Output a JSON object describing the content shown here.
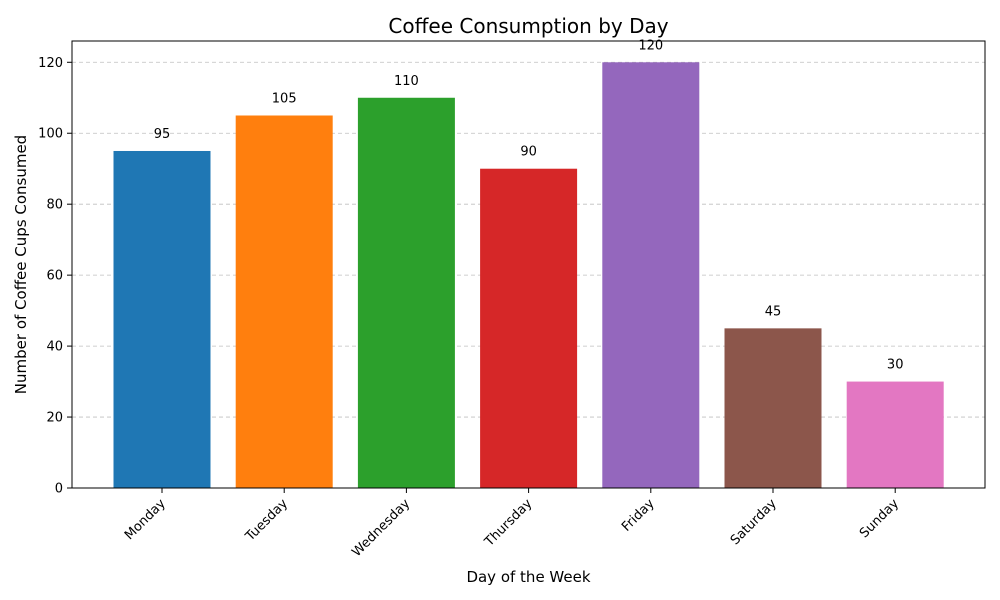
{
  "chart_data": {
    "type": "bar",
    "title": "Coffee Consumption by Day",
    "xlabel": "Day of the Week",
    "ylabel": "Number of Coffee Cups Consumed",
    "categories": [
      "Monday",
      "Tuesday",
      "Wednesday",
      "Thursday",
      "Friday",
      "Saturday",
      "Sunday"
    ],
    "values": [
      95,
      105,
      110,
      90,
      120,
      45,
      30
    ],
    "colors": [
      "#1f77b4",
      "#ff7f0e",
      "#2ca02c",
      "#d62728",
      "#9467bd",
      "#8c564b",
      "#e377c2"
    ],
    "ylim": [
      0,
      126
    ],
    "yticks": [
      0,
      20,
      40,
      60,
      80,
      100,
      120
    ],
    "grid": "y-dashed",
    "legend": "none"
  }
}
